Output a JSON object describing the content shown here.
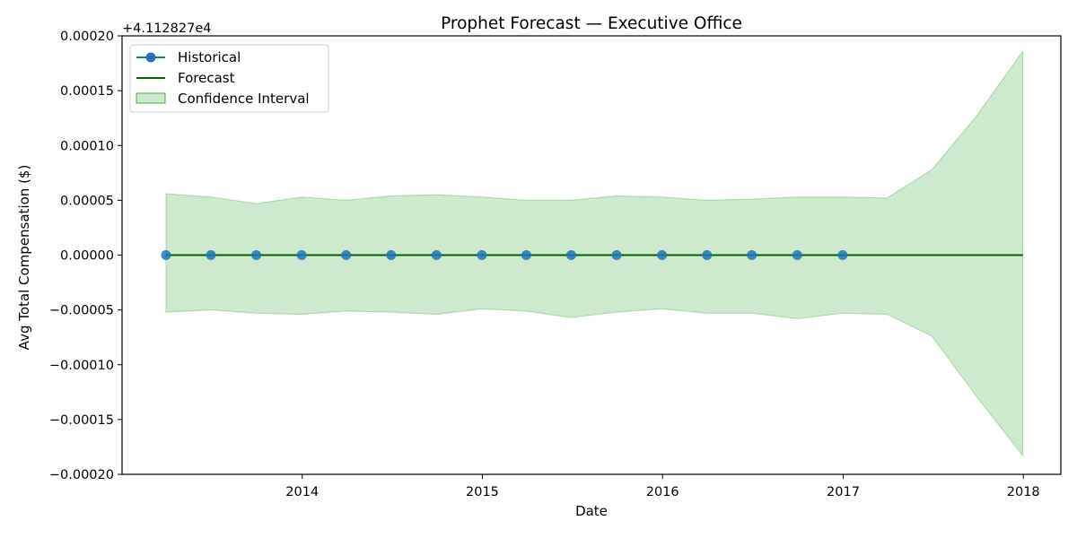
{
  "chart_data": {
    "type": "line",
    "title": "Prophet Forecast — Executive Office",
    "xlabel": "Date",
    "ylabel": "Avg Total Compensation ($)",
    "offset_text": "+4.112827e4",
    "y_offset": 41128.27,
    "ylim": [
      -0.0002,
      0.0002
    ],
    "xlim": [
      "2013-01-01",
      "2018-03-18"
    ],
    "yticks": [
      -0.0002,
      -0.00015,
      -0.0001,
      -5e-05,
      0,
      5e-05,
      0.0001,
      0.00015,
      0.0002
    ],
    "ytick_labels": [
      "−0.00020",
      "−0.00015",
      "−0.00010",
      "−0.00005",
      "0.00000",
      "0.00005",
      "0.00010",
      "0.00015",
      "0.00020"
    ],
    "xticks": [
      "2014-01-01",
      "2015-01-01",
      "2016-01-01",
      "2017-01-01",
      "2018-01-01"
    ],
    "xtick_labels": [
      "2014",
      "2015",
      "2016",
      "2017",
      "2018"
    ],
    "grid": false,
    "legend_position": "top-left",
    "series": [
      {
        "name": "Historical",
        "kind": "line-marker",
        "color": "#1f77b4",
        "x": [
          "2013-03-31",
          "2013-06-30",
          "2013-09-30",
          "2013-12-31",
          "2014-03-31",
          "2014-06-30",
          "2014-09-30",
          "2014-12-31",
          "2015-03-31",
          "2015-06-30",
          "2015-09-30",
          "2015-12-31",
          "2016-03-31",
          "2016-06-30",
          "2016-09-30",
          "2016-12-31"
        ],
        "y": [
          0,
          0,
          0,
          0,
          0,
          0,
          0,
          0,
          0,
          0,
          0,
          0,
          0,
          0,
          0,
          0
        ]
      },
      {
        "name": "Forecast",
        "kind": "line",
        "color": "#006400",
        "x": [
          "2013-03-31",
          "2013-06-30",
          "2013-09-30",
          "2013-12-31",
          "2014-03-31",
          "2014-06-30",
          "2014-09-30",
          "2014-12-31",
          "2015-03-31",
          "2015-06-30",
          "2015-09-30",
          "2015-12-31",
          "2016-03-31",
          "2016-06-30",
          "2016-09-30",
          "2016-12-31",
          "2017-03-31",
          "2017-06-30",
          "2017-09-30",
          "2017-12-31"
        ],
        "y": [
          0,
          0,
          0,
          0,
          0,
          0,
          0,
          0,
          0,
          0,
          0,
          0,
          0,
          0,
          0,
          0,
          0,
          0,
          0,
          0
        ]
      },
      {
        "name": "Confidence Interval",
        "kind": "band",
        "color": "#4daf4a",
        "x": [
          "2013-03-31",
          "2013-06-30",
          "2013-09-30",
          "2013-12-31",
          "2014-03-31",
          "2014-06-30",
          "2014-09-30",
          "2014-12-31",
          "2015-03-31",
          "2015-06-30",
          "2015-09-30",
          "2015-12-31",
          "2016-03-31",
          "2016-06-30",
          "2016-09-30",
          "2016-12-31",
          "2017-03-31",
          "2017-06-30",
          "2017-09-30",
          "2017-12-31"
        ],
        "upper": [
          5.6e-05,
          5.3e-05,
          4.7e-05,
          5.3e-05,
          5e-05,
          5.4e-05,
          5.5e-05,
          5.3e-05,
          5e-05,
          5e-05,
          5.4e-05,
          5.3e-05,
          5e-05,
          5.1e-05,
          5.3e-05,
          5.3e-05,
          5.2e-05,
          7.8e-05,
          0.000128,
          0.000186
        ],
        "lower": [
          -5.2e-05,
          -5e-05,
          -5.3e-05,
          -5.4e-05,
          -5.1e-05,
          -5.2e-05,
          -5.4e-05,
          -4.9e-05,
          -5.1e-05,
          -5.7e-05,
          -5.2e-05,
          -4.9e-05,
          -5.3e-05,
          -5.3e-05,
          -5.8e-05,
          -5.3e-05,
          -5.4e-05,
          -7.4e-05,
          -0.00013,
          -0.000183
        ]
      }
    ]
  }
}
